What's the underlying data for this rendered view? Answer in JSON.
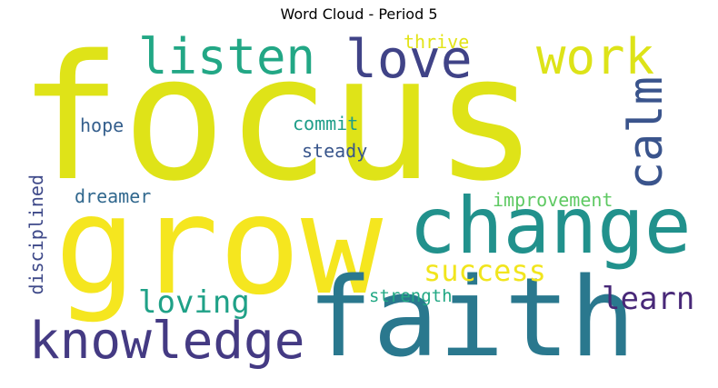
{
  "title": "Word Cloud - Period 5",
  "chart_data": {
    "type": "wordcloud",
    "title": "Word Cloud - Period 5",
    "words": [
      {
        "text": "focus",
        "weight": 100,
        "color": "#dfe318"
      },
      {
        "text": "grow",
        "weight": 78,
        "color": "#f5e61f"
      },
      {
        "text": "faith",
        "weight": 70,
        "color": "#2a788e"
      },
      {
        "text": "change",
        "weight": 44,
        "color": "#21918c"
      },
      {
        "text": "knowledge",
        "weight": 30,
        "color": "#443a83"
      },
      {
        "text": "love",
        "weight": 30,
        "color": "#404387"
      },
      {
        "text": "work",
        "weight": 30,
        "color": "#dde318"
      },
      {
        "text": "listen",
        "weight": 30,
        "color": "#22a785"
      },
      {
        "text": "calm",
        "weight": 28,
        "color": "#3a548c"
      },
      {
        "text": "success",
        "weight": 20,
        "color": "#f1e51d"
      },
      {
        "text": "loving",
        "weight": 20,
        "color": "#1fa187"
      },
      {
        "text": "learn",
        "weight": 20,
        "color": "#482878"
      },
      {
        "text": "improvement",
        "weight": 12,
        "color": "#5ec962"
      },
      {
        "text": "strength",
        "weight": 11,
        "color": "#22a884"
      },
      {
        "text": "disciplined",
        "weight": 11,
        "color": "#3e4989"
      },
      {
        "text": "dreamer",
        "weight": 12,
        "color": "#31688e"
      },
      {
        "text": "commit",
        "weight": 12,
        "color": "#1f9e89"
      },
      {
        "text": "steady",
        "weight": 12,
        "color": "#39568c"
      },
      {
        "text": "hope",
        "weight": 12,
        "color": "#355f8d"
      },
      {
        "text": "thrive",
        "weight": 11,
        "color": "#e2e418"
      }
    ]
  }
}
